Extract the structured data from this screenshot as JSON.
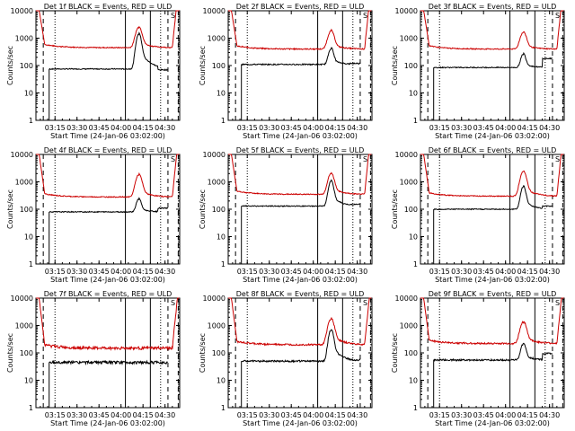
{
  "chart_data": [
    {
      "type": "line",
      "title": "Det 1f BLACK = Events, RED = ULD",
      "flag": "S",
      "xlabel": "Start Time (24-Jan-06 03:02:00)",
      "ylabel": "Counts/sec",
      "yscale": "log",
      "ylim": [
        1,
        10000
      ],
      "x_ticks": [
        "03:15",
        "03:30",
        "03:45",
        "04:00",
        "04:15",
        "04:30"
      ],
      "y_ticks": [
        "1",
        "10",
        "100",
        "1000",
        "10000"
      ],
      "red_base": 450,
      "red_bump": 2000,
      "black_base": 75,
      "black_bump": 1300,
      "black_end": 70,
      "noise": 0.04,
      "series": [
        {
          "name": "Events",
          "color": "#000000"
        },
        {
          "name": "ULD",
          "color": "#cc0000"
        }
      ],
      "solid_lines": [
        "04:03",
        "04:20"
      ],
      "dashed_lines": [
        "03:07",
        "04:32",
        "04:39"
      ],
      "dotted_lines": [
        "03:15",
        "04:27"
      ]
    },
    {
      "type": "line",
      "title": "Det 2f BLACK = Events, RED = ULD",
      "flag": "S",
      "xlabel": "Start Time (24-Jan-06 03:02:00)",
      "ylabel": "Counts/sec",
      "yscale": "log",
      "ylim": [
        1,
        10000
      ],
      "x_ticks": [
        "03:15",
        "03:30",
        "03:45",
        "04:00",
        "04:15",
        "04:30"
      ],
      "y_ticks": [
        "1",
        "10",
        "100",
        "1000",
        "10000"
      ],
      "red_base": 400,
      "red_bump": 1400,
      "black_base": 110,
      "black_bump": 300,
      "black_end": 120,
      "noise": 0.05,
      "series": [
        {
          "name": "Events",
          "color": "#000000"
        },
        {
          "name": "ULD",
          "color": "#cc0000"
        }
      ],
      "solid_lines": [
        "04:03",
        "04:20"
      ],
      "dashed_lines": [
        "03:07",
        "04:32",
        "04:39"
      ],
      "dotted_lines": [
        "03:15",
        "04:27"
      ]
    },
    {
      "type": "line",
      "title": "Det 3f BLACK = Events, RED = ULD",
      "flag": "S",
      "xlabel": "Start Time (24-Jan-06 03:02:00)",
      "ylabel": "Counts/sec",
      "yscale": "log",
      "ylim": [
        1,
        10000
      ],
      "x_ticks": [
        "03:15",
        "03:30",
        "03:45",
        "04:00",
        "04:15",
        "04:30"
      ],
      "y_ticks": [
        "1",
        "10",
        "100",
        "1000",
        "10000"
      ],
      "red_base": 400,
      "red_bump": 1200,
      "black_base": 85,
      "black_bump": 170,
      "black_end": 180,
      "noise": 0.04,
      "series": [
        {
          "name": "Events",
          "color": "#000000"
        },
        {
          "name": "ULD",
          "color": "#cc0000"
        }
      ],
      "solid_lines": [
        "04:03",
        "04:20"
      ],
      "dashed_lines": [
        "03:07",
        "04:32",
        "04:39"
      ],
      "dotted_lines": [
        "03:15",
        "04:27"
      ]
    },
    {
      "type": "line",
      "title": "Det 4f BLACK = Events, RED = ULD",
      "flag": "S",
      "xlabel": "Start Time (24-Jan-06 03:02:00)",
      "ylabel": "Counts/sec",
      "yscale": "log",
      "ylim": [
        1,
        10000
      ],
      "x_ticks": [
        "03:15",
        "03:30",
        "03:45",
        "04:00",
        "04:15",
        "04:30"
      ],
      "y_ticks": [
        "1",
        "10",
        "100",
        "1000",
        "10000"
      ],
      "red_base": 280,
      "red_bump": 1500,
      "black_base": 80,
      "black_bump": 150,
      "black_end": 110,
      "noise": 0.04,
      "series": [
        {
          "name": "Events",
          "color": "#000000"
        },
        {
          "name": "ULD",
          "color": "#cc0000"
        }
      ],
      "solid_lines": [
        "04:03",
        "04:20"
      ],
      "dashed_lines": [
        "03:07",
        "04:32",
        "04:39"
      ],
      "dotted_lines": [
        "03:15",
        "04:27"
      ]
    },
    {
      "type": "line",
      "title": "Det 5f BLACK = Events, RED = ULD",
      "flag": "S",
      "xlabel": "Start Time (24-Jan-06 03:02:00)",
      "ylabel": "Counts/sec",
      "yscale": "log",
      "ylim": [
        1,
        10000
      ],
      "x_ticks": [
        "03:15",
        "03:30",
        "03:45",
        "04:00",
        "04:15",
        "04:30"
      ],
      "y_ticks": [
        "1",
        "10",
        "100",
        "1000",
        "10000"
      ],
      "red_base": 350,
      "red_bump": 1600,
      "black_base": 130,
      "black_bump": 900,
      "black_end": 150,
      "noise": 0.04,
      "series": [
        {
          "name": "Events",
          "color": "#000000"
        },
        {
          "name": "ULD",
          "color": "#cc0000"
        }
      ],
      "solid_lines": [
        "04:03",
        "04:20"
      ],
      "dashed_lines": [
        "03:07",
        "04:32",
        "04:39"
      ],
      "dotted_lines": [
        "03:15",
        "04:27"
      ]
    },
    {
      "type": "line",
      "title": "Det 6f BLACK = Events, RED = ULD",
      "flag": "S",
      "xlabel": "Start Time (24-Jan-06 03:02:00)",
      "ylabel": "Counts/sec",
      "yscale": "log",
      "ylim": [
        1,
        10000
      ],
      "x_ticks": [
        "03:15",
        "03:30",
        "03:45",
        "04:00",
        "04:15",
        "04:30"
      ],
      "y_ticks": [
        "1",
        "10",
        "100",
        "1000",
        "10000"
      ],
      "red_base": 300,
      "red_bump": 2000,
      "black_base": 100,
      "black_bump": 550,
      "black_end": 130,
      "noise": 0.04,
      "series": [
        {
          "name": "Events",
          "color": "#000000"
        },
        {
          "name": "ULD",
          "color": "#cc0000"
        }
      ],
      "solid_lines": [
        "04:03",
        "04:20"
      ],
      "dashed_lines": [
        "03:07",
        "04:32",
        "04:39"
      ],
      "dotted_lines": [
        "03:15",
        "04:27"
      ]
    },
    {
      "type": "line",
      "title": "Det 7f BLACK = Events, RED = ULD",
      "flag": "S",
      "xlabel": "Start Time (24-Jan-06 03:02:00)",
      "ylabel": "Counts/sec",
      "yscale": "log",
      "ylim": [
        1,
        10000
      ],
      "x_ticks": [
        "03:15",
        "03:30",
        "03:45",
        "04:00",
        "04:15",
        "04:30"
      ],
      "y_ticks": [
        "1",
        "10",
        "100",
        "1000",
        "10000"
      ],
      "red_base": 150,
      "red_bump": 0,
      "black_base": 45,
      "black_bump": 0,
      "black_end": 45,
      "noise": 0.12,
      "series": [
        {
          "name": "Events",
          "color": "#000000"
        },
        {
          "name": "ULD",
          "color": "#cc0000"
        }
      ],
      "solid_lines": [
        "04:03",
        "04:20"
      ],
      "dashed_lines": [
        "03:07",
        "04:32",
        "04:39"
      ],
      "dotted_lines": [
        "03:15",
        "04:27"
      ]
    },
    {
      "type": "line",
      "title": "Det 8f BLACK = Events, RED = ULD",
      "flag": "S",
      "xlabel": "Start Time (24-Jan-06 03:02:00)",
      "ylabel": "Counts/sec",
      "yscale": "log",
      "ylim": [
        1,
        10000
      ],
      "x_ticks": [
        "03:15",
        "03:30",
        "03:45",
        "04:00",
        "04:15",
        "04:30"
      ],
      "y_ticks": [
        "1",
        "10",
        "100",
        "1000",
        "10000"
      ],
      "red_base": 200,
      "red_bump": 1500,
      "black_base": 50,
      "black_bump": 600,
      "black_end": 55,
      "noise": 0.07,
      "series": [
        {
          "name": "Events",
          "color": "#000000"
        },
        {
          "name": "ULD",
          "color": "#cc0000"
        }
      ],
      "solid_lines": [
        "04:03",
        "04:20"
      ],
      "dashed_lines": [
        "03:07",
        "04:32",
        "04:39"
      ],
      "dotted_lines": [
        "03:15",
        "04:27"
      ]
    },
    {
      "type": "line",
      "title": "Det 9f BLACK = Events, RED = ULD",
      "flag": "S",
      "xlabel": "Start Time (24-Jan-06 03:02:00)",
      "ylabel": "Counts/sec",
      "yscale": "log",
      "ylim": [
        1,
        10000
      ],
      "x_ticks": [
        "03:15",
        "03:30",
        "03:45",
        "04:00",
        "04:15",
        "04:30"
      ],
      "y_ticks": [
        "1",
        "10",
        "100",
        "1000",
        "10000"
      ],
      "red_base": 220,
      "red_bump": 1100,
      "black_base": 55,
      "black_bump": 150,
      "black_end": 95,
      "noise": 0.07,
      "series": [
        {
          "name": "Events",
          "color": "#000000"
        },
        {
          "name": "ULD",
          "color": "#cc0000"
        }
      ],
      "solid_lines": [
        "04:03",
        "04:20"
      ],
      "dashed_lines": [
        "03:07",
        "04:32",
        "04:39"
      ],
      "dotted_lines": [
        "03:15",
        "04:27"
      ]
    }
  ]
}
